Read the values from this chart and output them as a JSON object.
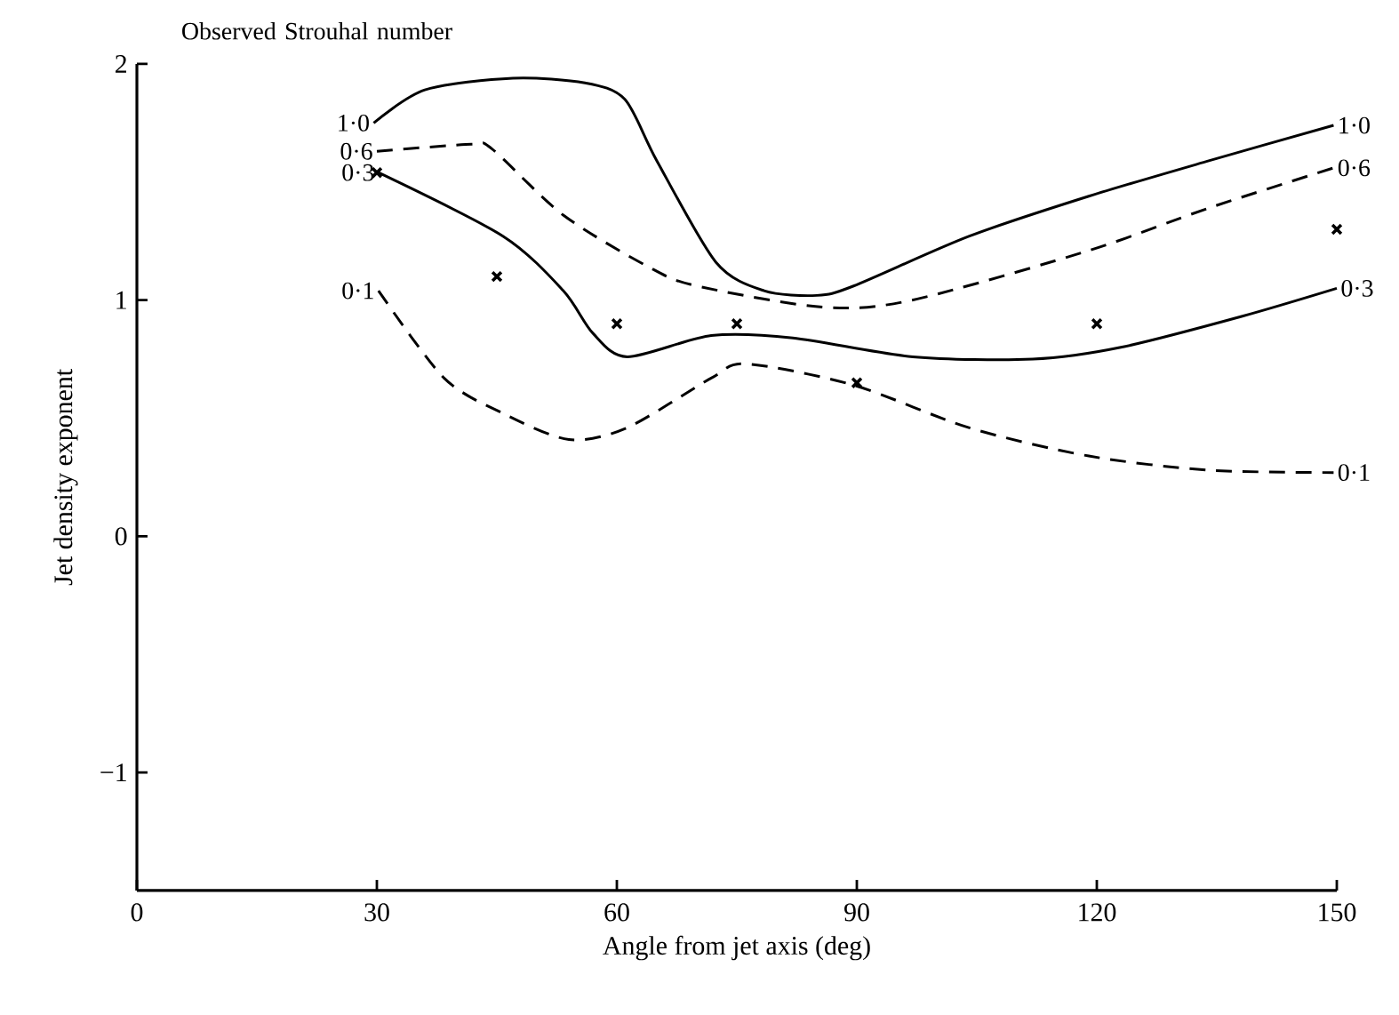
{
  "chart_data": {
    "type": "line",
    "xlabel": "Angle from jet axis (deg)",
    "ylabel": "Jet density exponent",
    "legend_title": "Observed Strouhal number",
    "xlim": [
      0,
      150
    ],
    "ylim": [
      -1.5,
      2
    ],
    "xticks": [
      0,
      30,
      60,
      90,
      120,
      150
    ],
    "yticks": [
      {
        "value": -1,
        "label": "−1"
      },
      0,
      1,
      2
    ],
    "series": [
      {
        "name": "1·0",
        "color": "#000000",
        "line_style": "solid",
        "x": [
          29.6,
          36,
          47,
          56,
          61,
          65,
          72.4,
          78.4,
          85,
          89.6,
          104,
          119,
          134,
          149.6
        ],
        "values": [
          1.75,
          1.89,
          1.94,
          1.92,
          1.85,
          1.59,
          1.16,
          1.04,
          1.02,
          1.06,
          1.27,
          1.44,
          1.59,
          1.74
        ]
      },
      {
        "name": "0·6",
        "color": "#000000",
        "line_style": "dashed",
        "x": [
          30,
          41.8,
          44.4,
          53.3,
          64,
          70,
          85.8,
          96.9,
          119,
          134,
          149.6
        ],
        "values": [
          1.63,
          1.66,
          1.64,
          1.36,
          1.14,
          1.06,
          0.97,
          1.0,
          1.21,
          1.39,
          1.56
        ]
      },
      {
        "name": "0·3",
        "color": "#000000",
        "line_style": "solid",
        "x": [
          30.2,
          45.8,
          53.3,
          57,
          61.3,
          71.8,
          82,
          97,
          112,
          123,
          138,
          150
        ],
        "values": [
          1.54,
          1.27,
          1.04,
          0.86,
          0.76,
          0.85,
          0.84,
          0.76,
          0.75,
          0.8,
          0.93,
          1.05
        ]
      },
      {
        "name": "0·1",
        "color": "#000000",
        "line_style": "dashed",
        "x": [
          30.2,
          38.4,
          45.8,
          54,
          61.3,
          71.8,
          76.2,
          89.6,
          104,
          119,
          134,
          149.6
        ],
        "values": [
          1.04,
          0.67,
          0.52,
          0.41,
          0.46,
          0.67,
          0.73,
          0.64,
          0.46,
          0.34,
          0.28,
          0.27
        ]
      },
      {
        "type": "scatter",
        "marker": "cross",
        "color": "#000000",
        "x": [
          30,
          45,
          60,
          75,
          90,
          120,
          150
        ],
        "values": [
          1.54,
          1.1,
          0.9,
          0.9,
          0.65,
          0.9,
          1.3
        ]
      }
    ]
  }
}
